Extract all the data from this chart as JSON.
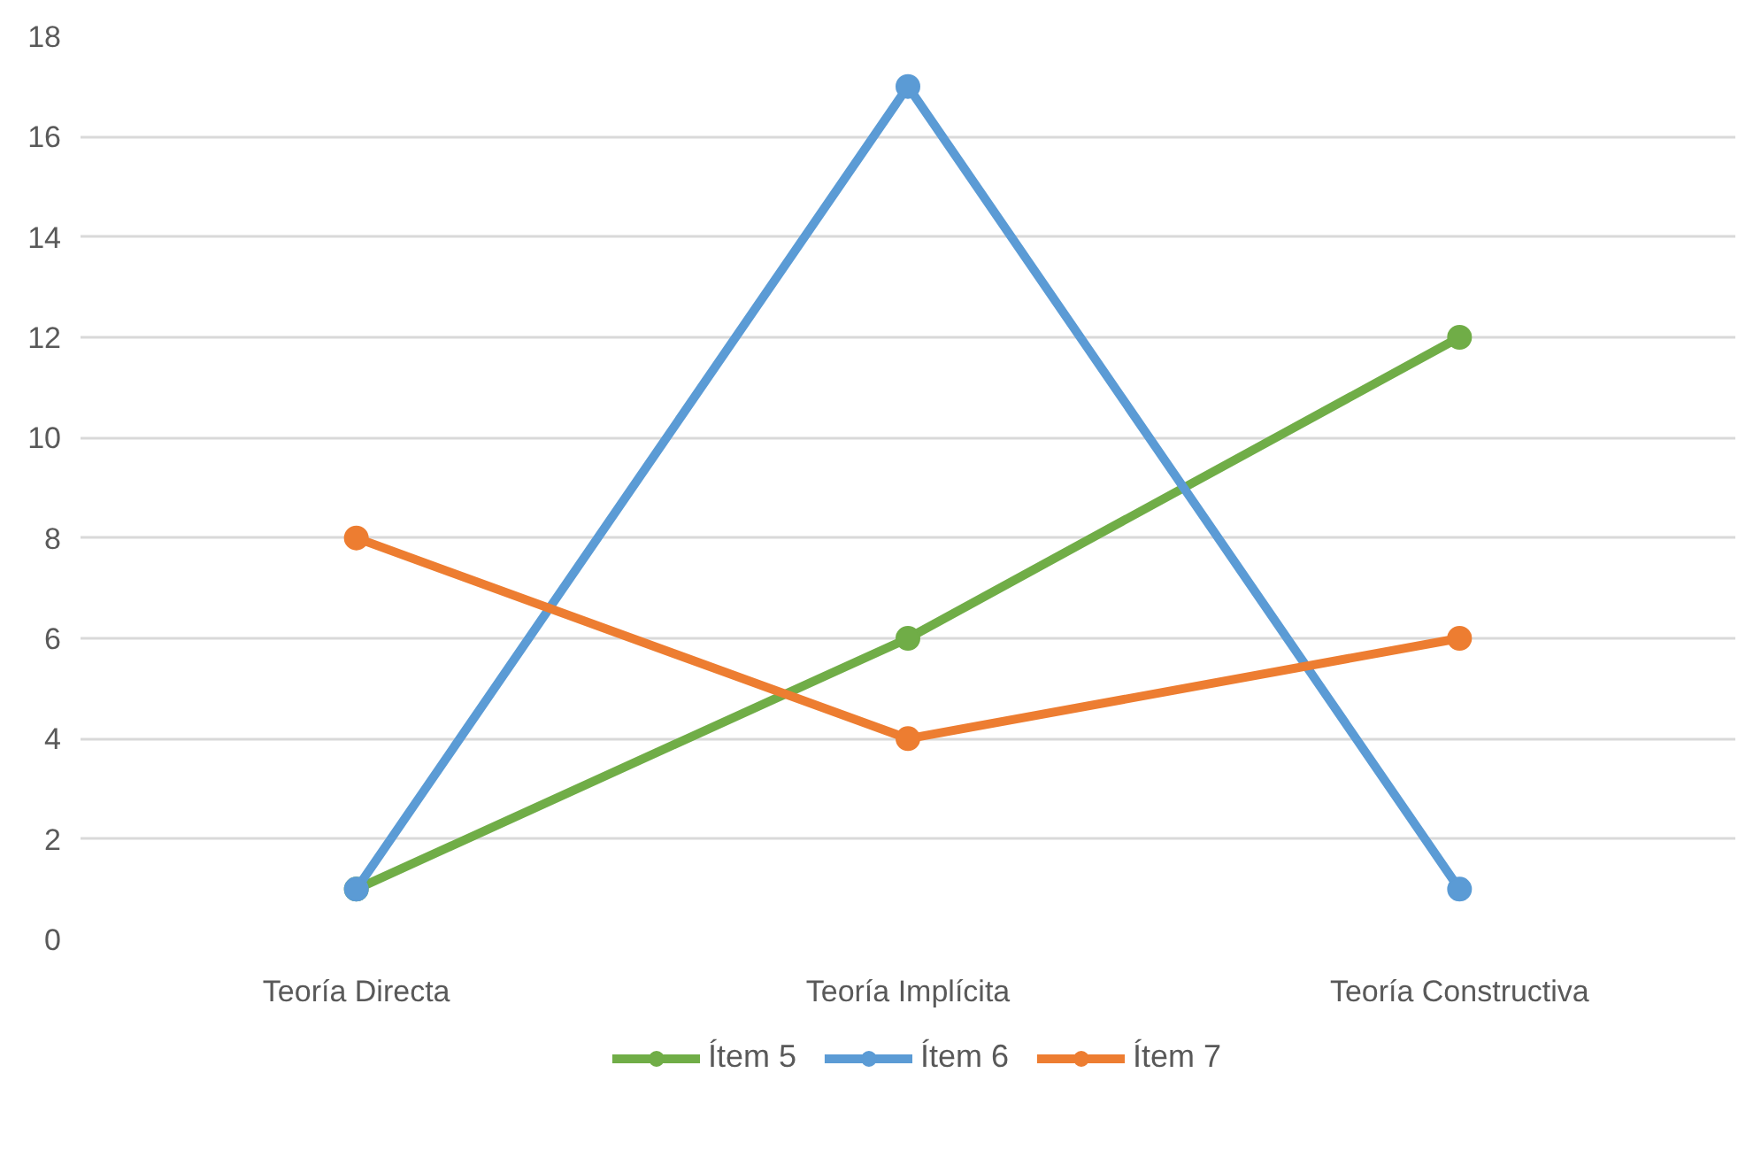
{
  "chart_data": {
    "type": "line",
    "categories": [
      "Teoría Directa",
      "Teoría Implícita",
      "Teoría Constructiva"
    ],
    "series": [
      {
        "name": "Ítem 5",
        "color": "#70ad47",
        "values": [
          1,
          6,
          12
        ]
      },
      {
        "name": "Ítem 6",
        "color": "#5b9bd5",
        "values": [
          1,
          17,
          1
        ]
      },
      {
        "name": "Ítem 7",
        "color": "#ed7d31",
        "values": [
          8,
          4,
          6
        ]
      }
    ],
    "ylim": [
      0,
      18
    ],
    "yticks": [
      0,
      2,
      4,
      6,
      8,
      10,
      12,
      14,
      16,
      18
    ],
    "grid": "y",
    "legend": "bottom",
    "marker": "circle",
    "line_style": "solid"
  }
}
